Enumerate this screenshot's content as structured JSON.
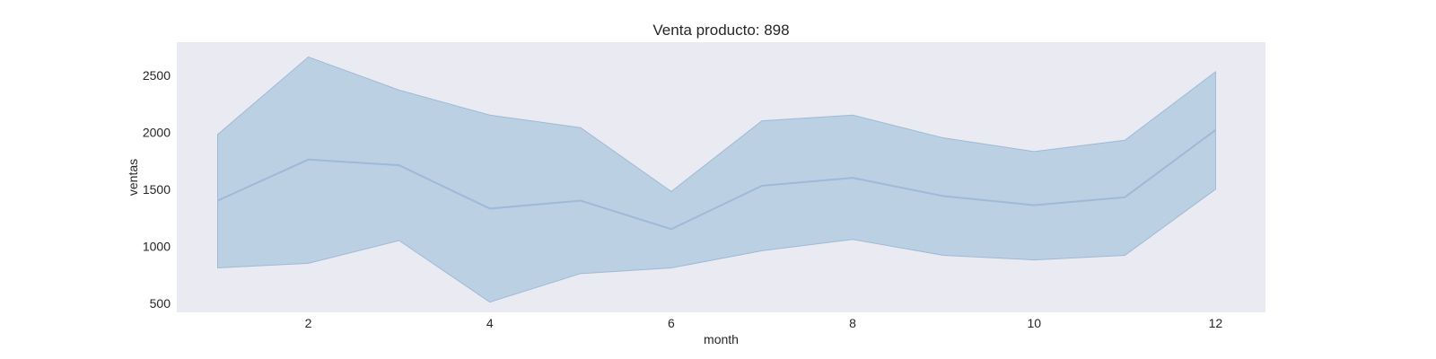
{
  "chart_data": {
    "type": "line",
    "title": "Venta producto: 898",
    "xlabel": "month",
    "ylabel": "ventas",
    "xlim": [
      0.55,
      12.55
    ],
    "ylim": [
      420,
      2790
    ],
    "x_ticks": [
      2,
      4,
      6,
      8,
      10,
      12
    ],
    "y_ticks": [
      500,
      1000,
      1500,
      2000,
      2500
    ],
    "grid": false,
    "x": [
      1,
      2,
      3,
      4,
      5,
      6,
      7,
      8,
      9,
      10,
      11,
      12
    ],
    "series": [
      {
        "values": [
          1400,
          1760,
          1710,
          1330,
          1400,
          1150,
          1530,
          1600,
          1440,
          1360,
          1430,
          2020
        ],
        "lower": [
          810,
          850,
          1050,
          510,
          760,
          810,
          960,
          1060,
          920,
          880,
          920,
          1500
        ],
        "upper": [
          1980,
          2660,
          2370,
          2150,
          2040,
          1480,
          2100,
          2150,
          1950,
          1830,
          1930,
          2530
        ]
      }
    ],
    "colors": {
      "line": "#9ebad6",
      "band": "#bcd0e4",
      "plot_background": "#eaeaf2",
      "text": "#262626"
    }
  }
}
